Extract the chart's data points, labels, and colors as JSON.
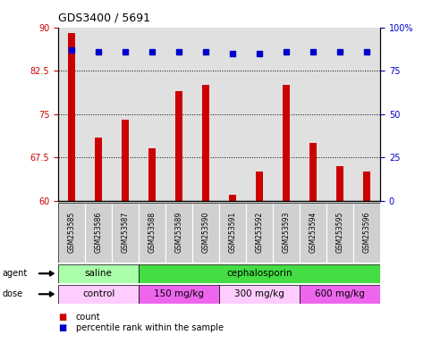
{
  "title": "GDS3400 / 5691",
  "samples": [
    "GSM253585",
    "GSM253586",
    "GSM253587",
    "GSM253588",
    "GSM253589",
    "GSM253590",
    "GSM253591",
    "GSM253592",
    "GSM253593",
    "GSM253594",
    "GSM253595",
    "GSM253596"
  ],
  "bar_values": [
    89,
    71,
    74,
    69,
    79,
    80,
    61,
    65,
    80,
    70,
    66,
    65
  ],
  "percentile_values": [
    87,
    86,
    86,
    86,
    86,
    86,
    85,
    85,
    86,
    86,
    86,
    86
  ],
  "bar_color": "#cc0000",
  "dot_color": "#0000cc",
  "ylim_left": [
    60,
    90
  ],
  "ylim_right": [
    0,
    100
  ],
  "yticks_left": [
    60,
    67.5,
    75,
    82.5,
    90
  ],
  "ytick_labels_left": [
    "60",
    "67.5",
    "75",
    "82.5",
    "90"
  ],
  "yticks_right": [
    0,
    25,
    50,
    75,
    100
  ],
  "ytick_labels_right": [
    "0",
    "25",
    "50",
    "75",
    "100%"
  ],
  "agent_groups": [
    {
      "label": "saline",
      "start": 0,
      "end": 3,
      "color": "#aaffaa"
    },
    {
      "label": "cephalosporin",
      "start": 3,
      "end": 12,
      "color": "#44dd44"
    }
  ],
  "dose_groups": [
    {
      "label": "control",
      "start": 0,
      "end": 3,
      "color": "#ffccff"
    },
    {
      "label": "150 mg/kg",
      "start": 3,
      "end": 6,
      "color": "#ee66ee"
    },
    {
      "label": "300 mg/kg",
      "start": 6,
      "end": 9,
      "color": "#ffccff"
    },
    {
      "label": "600 mg/kg",
      "start": 9,
      "end": 12,
      "color": "#ee66ee"
    }
  ],
  "legend_count_label": "count",
  "legend_pct_label": "percentile rank within the sample",
  "agent_label": "agent",
  "dose_label": "dose",
  "background_color": "#ffffff",
  "plot_bg_color": "#e0e0e0",
  "sample_box_color": "#d0d0d0",
  "grid_lines": [
    67.5,
    75,
    82.5
  ]
}
